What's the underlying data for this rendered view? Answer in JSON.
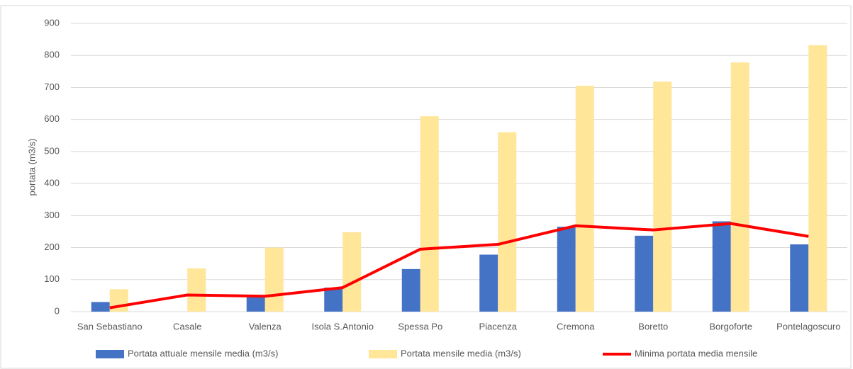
{
  "chart_data": {
    "type": "bar",
    "y_label": "portata (m3/s)",
    "categories": [
      "San Sebastiano",
      "Casale",
      "Valenza",
      "Isola S.Antonio",
      "Spessa Po",
      "Piacenza",
      "Cremona",
      "Boretto",
      "Borgoforte",
      "Pontelagoscuro"
    ],
    "series": [
      {
        "name": "Portata attuale mensile media (m3/s)",
        "type": "bar",
        "color": "#4472c4",
        "values": [
          30,
          null,
          45,
          75,
          133,
          178,
          265,
          237,
          282,
          210
        ]
      },
      {
        "name": "Portata mensile media (m3/s)",
        "type": "bar",
        "color": "#ffe699",
        "values": [
          70,
          135,
          200,
          248,
          610,
          560,
          705,
          718,
          778,
          832
        ]
      },
      {
        "name": "Minima portata media mensile",
        "type": "line",
        "color": "#ff0000",
        "values": [
          12,
          52,
          48,
          75,
          195,
          210,
          268,
          255,
          275,
          235
        ]
      }
    ],
    "ylim": [
      0,
      900
    ],
    "yticks": [
      0,
      100,
      200,
      300,
      400,
      500,
      600,
      700,
      800,
      900
    ],
    "grid": true,
    "legend": "bottom"
  }
}
